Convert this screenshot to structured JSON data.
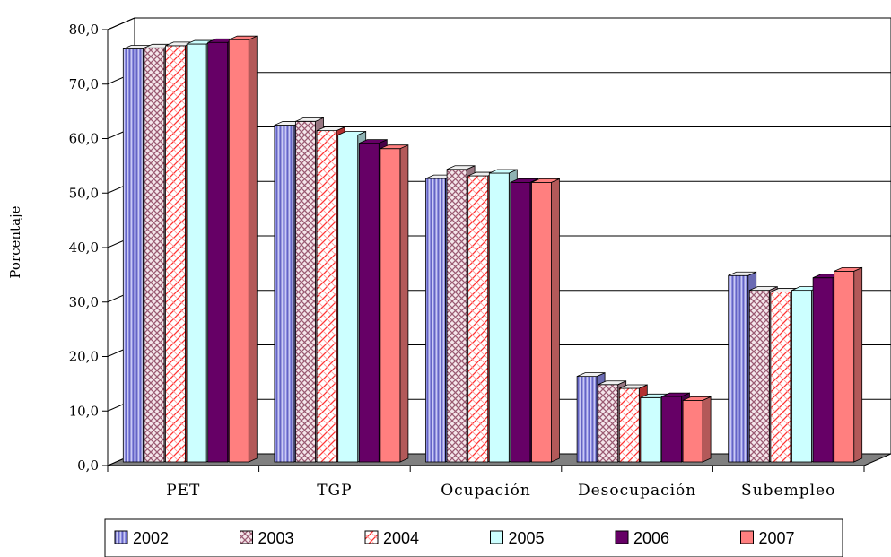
{
  "chart_data": {
    "type": "bar",
    "title": "",
    "xlabel": "",
    "ylabel": "Porcentaje",
    "ylim": [
      0,
      80
    ],
    "yticks": [
      "0,0",
      "10,0",
      "20,0",
      "30,0",
      "40,0",
      "50,0",
      "60,0",
      "70,0",
      "80,0"
    ],
    "grid": true,
    "legend": "bottom",
    "categories": [
      "PET",
      "TGP",
      "Ocupación",
      "Desocupación",
      "Subempleo"
    ],
    "series": [
      {
        "name": "2002",
        "color": "#9999ff",
        "pattern": "vertical-stripes",
        "values": [
          75.8,
          61.8,
          52.0,
          15.7,
          34.2
        ]
      },
      {
        "name": "2003",
        "color": "#d8a8b8",
        "pattern": "crosshatch",
        "values": [
          76.0,
          62.5,
          53.7,
          14.2,
          31.5
        ]
      },
      {
        "name": "2004",
        "color": "#ff4444",
        "pattern": "diagonal",
        "values": [
          76.4,
          60.8,
          52.5,
          13.5,
          31.2
        ]
      },
      {
        "name": "2005",
        "color": "#ccffff",
        "pattern": "solid",
        "values": [
          76.7,
          60.0,
          53.0,
          11.8,
          31.5
        ]
      },
      {
        "name": "2006",
        "color": "#660066",
        "pattern": "solid",
        "values": [
          77.0,
          58.5,
          51.3,
          12.0,
          33.8
        ]
      },
      {
        "name": "2007",
        "color": "#ff7f7f",
        "pattern": "solid",
        "values": [
          77.5,
          57.5,
          51.3,
          11.3,
          35.0
        ]
      }
    ]
  }
}
